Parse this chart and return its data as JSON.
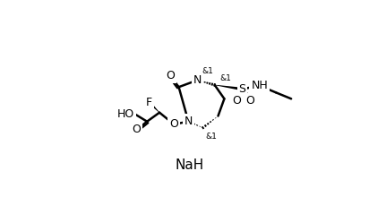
{
  "background_color": "#ffffff",
  "line_color": "#000000",
  "line_width": 1.8,
  "text_color": "#000000",
  "font_size": 9,
  "NaH_font_size": 11,
  "stereo_font_size": 6.5
}
